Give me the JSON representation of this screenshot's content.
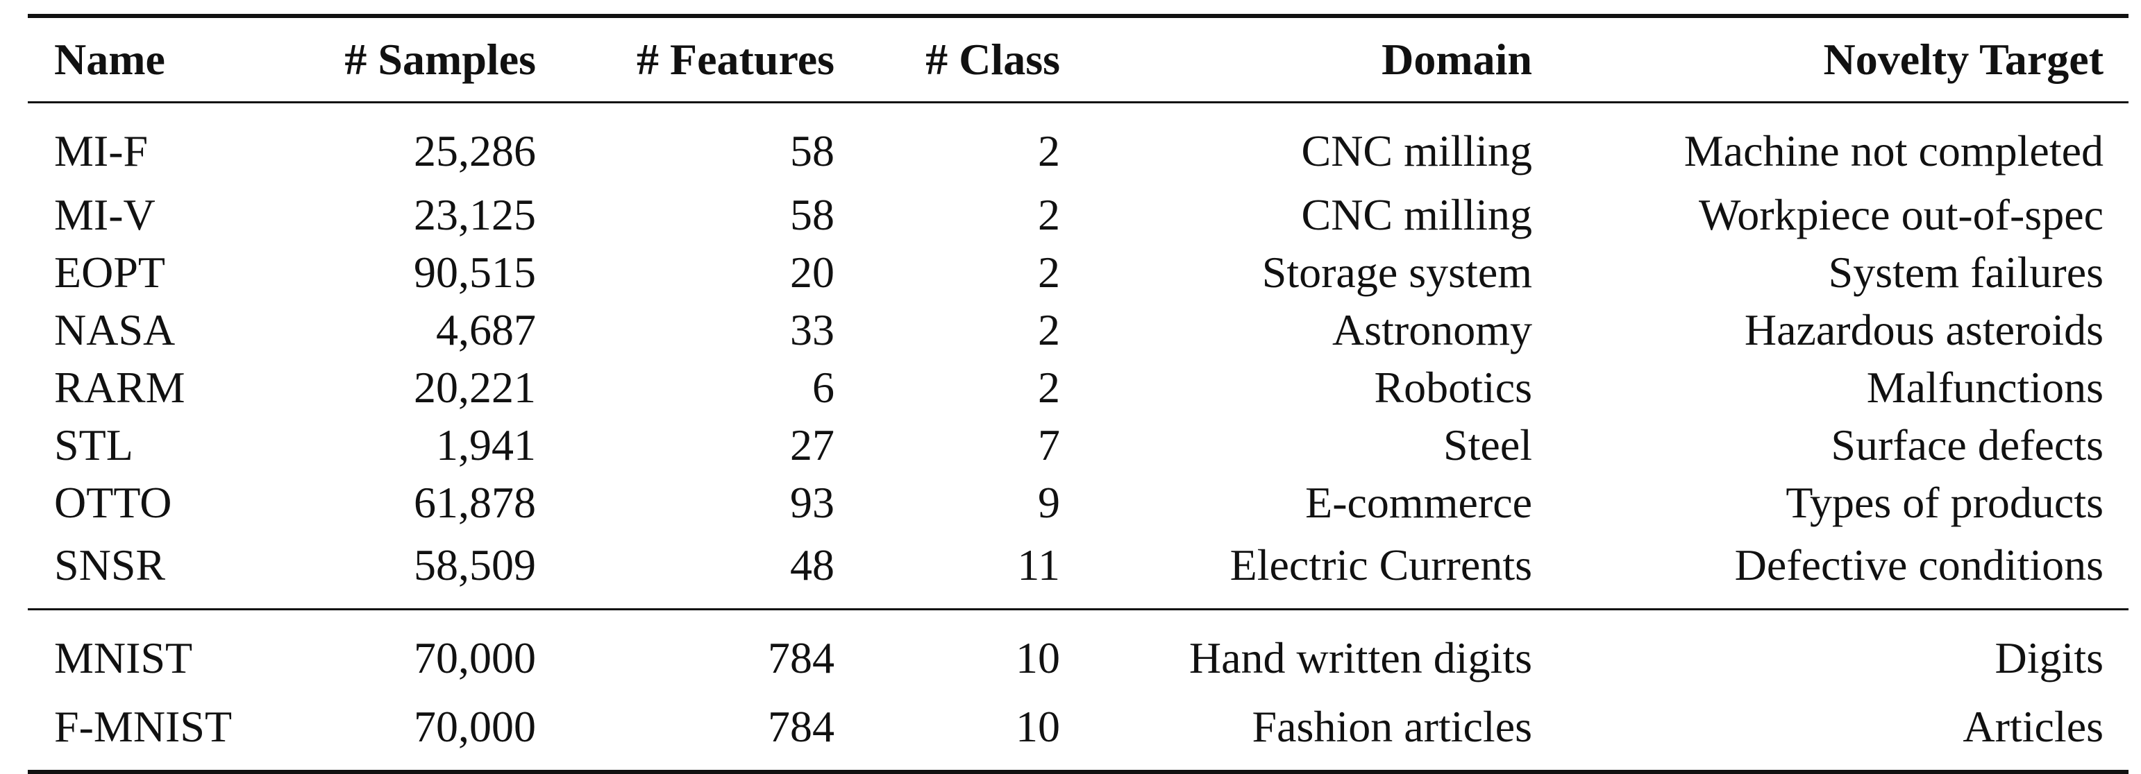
{
  "table": {
    "headers": [
      "Name",
      "# Samples",
      "# Features",
      "# Class",
      "Domain",
      "Novelty Target"
    ],
    "group1": [
      [
        "MI-F",
        "25,286",
        "58",
        "2",
        "CNC milling",
        "Machine not completed"
      ],
      [
        "MI-V",
        "23,125",
        "58",
        "2",
        "CNC milling",
        "Workpiece out-of-spec"
      ],
      [
        "EOPT",
        "90,515",
        "20",
        "2",
        "Storage system",
        "System failures"
      ],
      [
        "NASA",
        "4,687",
        "33",
        "2",
        "Astronomy",
        "Hazardous asteroids"
      ],
      [
        "RARM",
        "20,221",
        "6",
        "2",
        "Robotics",
        "Malfunctions"
      ],
      [
        "STL",
        "1,941",
        "27",
        "7",
        "Steel",
        "Surface defects"
      ],
      [
        "OTTO",
        "61,878",
        "93",
        "9",
        "E-commerce",
        "Types of products"
      ],
      [
        "SNSR",
        "58,509",
        "48",
        "11",
        "Electric Currents",
        "Defective conditions"
      ]
    ],
    "group2": [
      [
        "MNIST",
        "70,000",
        "784",
        "10",
        "Hand written digits",
        "Digits"
      ],
      [
        "F-MNIST",
        "70,000",
        "784",
        "10",
        "Fashion articles",
        "Articles"
      ]
    ]
  }
}
